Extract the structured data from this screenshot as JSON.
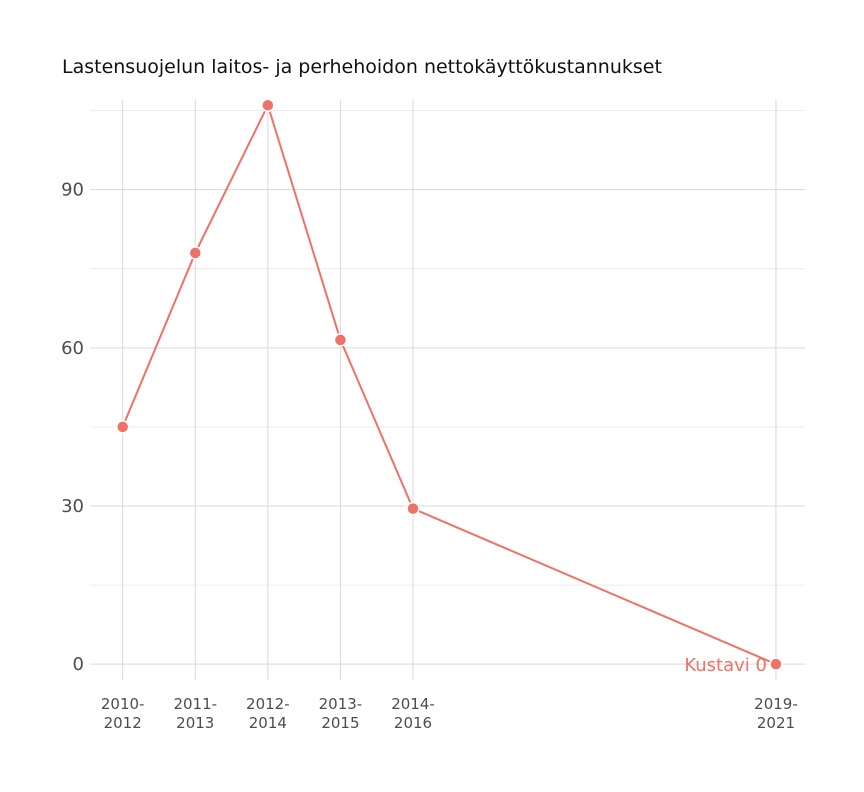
{
  "chart_data": {
    "type": "line",
    "title": "Lastensuojelun laitos- ja perhehoidon nettokäyttökustannukset",
    "x": [
      "2010-2012",
      "2011-2013",
      "2012-2014",
      "2013-2015",
      "2014-2016",
      "2019-2021"
    ],
    "x_numeric": [
      2011,
      2012,
      2013,
      2014,
      2015,
      2020
    ],
    "ylim": [
      -3,
      107
    ],
    "y_ticks": [
      0,
      30,
      60,
      90
    ],
    "grid": true,
    "series": [
      {
        "name": "Kustavi",
        "color": "#f07167",
        "values": [
          45,
          78,
          106,
          61.5,
          29.5,
          0
        ]
      }
    ],
    "end_label": "Kustavi 0"
  }
}
